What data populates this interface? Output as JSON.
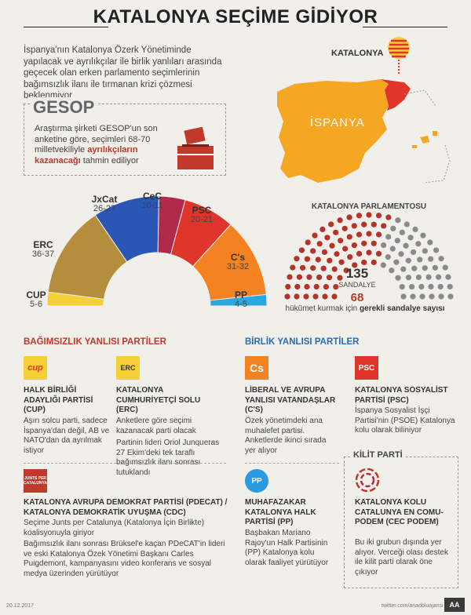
{
  "title": "KATALONYA SEÇİME GİDİYOR",
  "intro": "İspanya'nın Katalonya Özerk Yönetiminde yapılacak ve ayrılıkçılar ile birlik yanlıları arasında geçecek olan erken parlamento seçimlerinin bağımsızlık ilanı ile tırmanan krizi çözmesi beklenmiyor",
  "gesop": {
    "name": "GESOP",
    "text_1": "Araştırma şirketi GESOP'un son anketine göre, seçimleri 68-70 milletvekiliyle",
    "text_red": "ayrılıkçıların kazanacağı",
    "text_2": "tahmin ediliyor"
  },
  "map": {
    "label_katalonya": "KATALONYA",
    "label_ispanya": "İSPANYA",
    "colors": {
      "spain": "#f5a623",
      "catalonia": "#e0352b"
    }
  },
  "poll": {
    "parties": [
      {
        "name": "CUP",
        "seats": "5-6",
        "color": "#f7d038",
        "value": 5.5
      },
      {
        "name": "ERC",
        "seats": "36-37",
        "color": "#b58e3d",
        "value": 36.5
      },
      {
        "name": "JxCat",
        "seats": "26-27",
        "color": "#2a56b5",
        "value": 26.5
      },
      {
        "name": "CeC",
        "seats": "10-11",
        "color": "#b02a4b",
        "value": 10.5
      },
      {
        "name": "PSC",
        "seats": "20-21",
        "color": "#e0352b",
        "value": 20.5
      },
      {
        "name": "C's",
        "seats": "31-32",
        "color": "#f58220",
        "value": 31.5
      },
      {
        "name": "PP",
        "seats": "4-5",
        "color": "#2aa6e0",
        "value": 4.5
      }
    ]
  },
  "parliament": {
    "title": "KATALONYA PARLAMENTOSU",
    "total": "135",
    "total_label": "SANDALYE",
    "majority": "68",
    "note_pre": "hükümet kurmak için",
    "note_bold": "gerekli sandalye sayısı",
    "colors": {
      "majority": "#b5332a",
      "rest": "#8a8a8a"
    }
  },
  "sections": {
    "independence": "BAĞIMSIZLIK YANLISI PARTİLER",
    "unity": "BİRLİK YANLISI PARTİLER",
    "key": "KİLİT PARTİ"
  },
  "cards": {
    "cup": {
      "logo": "cup",
      "name": "HALK BİRLİĞİ ADAYLIĞI PARTİSİ (CUP)",
      "desc": "Aşırı solcu parti, sadece İspanya'dan değil, AB ve NATO'dan da ayrılmak istiyor"
    },
    "erc": {
      "logo": "ERC",
      "name": "KATALONYA CUMHURİYETÇİ SOLU (ERC)",
      "desc1": "Anketlere göre seçimi kazanacak parti olacak",
      "desc2": "Partinin lideri Oriol Junqueras 27 Ekim'deki tek taraflı bağımsızlık ilanı sonrası tutuklandı"
    },
    "cs": {
      "logo": "Cs",
      "name": "LİBERAL VE AVRUPA YANLISI VATANDAŞLAR (C'S)",
      "desc": "Özek yönetimdeki ana muhalefet partisi. Anketlerde ikinci sırada yer alıyor"
    },
    "psc": {
      "logo": "PSC",
      "name": "KATALONYA SOSYALİST PARTİSİ (PSC)",
      "desc": "İspanya Sosyalist İşçi Partisi'nin (PSOE) Katalonya kolu olarak biliniyor"
    },
    "pdecat": {
      "logo": "JUNTS PER CATALUNYA",
      "name": "KATALONYA AVRUPA DEMOKRAT PARTİSİ (PDECAT) / KATALONYA DEMOKRATİK UYUŞMA (CDC)",
      "desc1": "Seçime Junts per Catalunya (Katalonya İçin Birlikte) koalisyonuyla giriyor",
      "desc2": "Bağımsızlık ilanı sonrası Brüksel'e kaçan PDeCAT'in lideri ve eski Katalonya Özek Yönetimi Başkanı Carles Puigdemont, kampanyasını video konferans ve sosyal medya üzerinden yürütüyor"
    },
    "pp": {
      "logo": "PP",
      "name": "MUHAFAZAKAR KATALONYA HALK PARTİSİ (PP)",
      "desc": "Başbakan Mariano Rajoy'un Halk Partisinin (PP) Katalonya kolu olarak faaliyet yürütüyor"
    },
    "cec": {
      "name": "KATALONYA KOLU CATALUNYA EN COMU-PODEM (CEC PODEM)",
      "desc": "Bu iki grubun dışında yer alıyor. Verceği olası destek ile kilit parti olarak öne çıkıyor"
    }
  },
  "footer": {
    "date": "20.12.2017",
    "twitter": "twitter.com/anadoluajansi",
    "agency": "AA"
  }
}
